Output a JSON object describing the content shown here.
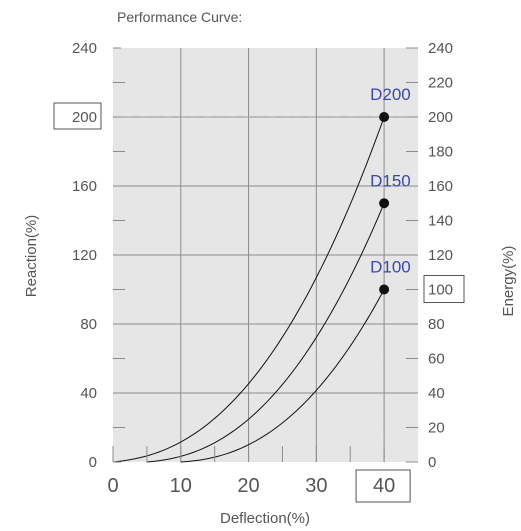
{
  "chart_data": {
    "type": "line",
    "title": "Performance Curve:",
    "xlabel": "Deflection(%)",
    "ylabel_left": "Reaction(%)",
    "ylabel_right": "Energy(%)",
    "xlim": [
      0,
      45
    ],
    "ylim": [
      0,
      240
    ],
    "x_ticks": [
      0,
      10,
      20,
      30,
      40
    ],
    "x_tick_labels": [
      "0",
      "10",
      "20",
      "30",
      "40"
    ],
    "y_left_ticks": [
      0,
      40,
      80,
      120,
      160,
      200,
      240
    ],
    "y_left_tick_labels": [
      "0",
      "40",
      "80",
      "120",
      "160",
      "200",
      "240"
    ],
    "y_right_ticks": [
      0,
      20,
      40,
      60,
      80,
      100,
      120,
      140,
      160,
      180,
      200,
      220,
      240
    ],
    "y_right_tick_labels": [
      "0",
      "20",
      "40",
      "60",
      "80",
      "100",
      "120",
      "140",
      "160",
      "180",
      "200",
      "220",
      "240"
    ],
    "grid": true,
    "highlighted": {
      "y_left_label": "200",
      "y_right_label": "100",
      "x_label": "40"
    },
    "reference_lines": [
      {
        "axis": "y",
        "value": 200,
        "style": "dashed"
      },
      {
        "axis": "x",
        "value": 40,
        "style": "dashed"
      }
    ],
    "series": [
      {
        "name": "D200",
        "start_x": 0,
        "end": [
          40,
          200
        ],
        "color": "#3b48a8"
      },
      {
        "name": "D150",
        "start_x": 5,
        "end": [
          40,
          150
        ],
        "color": "#3b48a8"
      },
      {
        "name": "D100",
        "start_x": 10,
        "end": [
          40,
          100
        ],
        "color": "#3b48a8"
      }
    ]
  }
}
